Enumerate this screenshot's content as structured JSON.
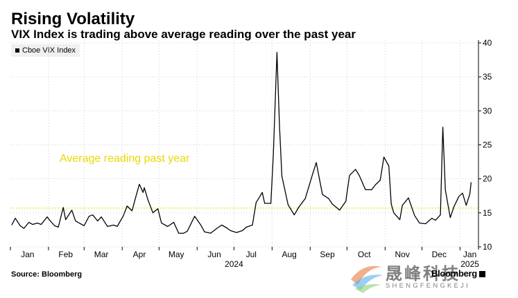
{
  "header": {
    "title": "Rising Volatility",
    "subtitle": "VIX Index is trading above average reading over the past year"
  },
  "legend": {
    "label": "Cboe VIX Index"
  },
  "footer": {
    "source": "Source: Bloomberg",
    "brand": "Bloomberg"
  },
  "watermark": {
    "chinese": "晟峰科技",
    "english": "SHENGFENGKEJI"
  },
  "colors": {
    "line": "#000000",
    "average_line": "#f0e000",
    "average_text": "#e8d800",
    "grid": "#cccccc"
  },
  "chart_data": {
    "type": "line",
    "title": "Rising Volatility",
    "subtitle": "VIX Index is trading above average reading over the past year",
    "ylim": [
      10,
      40
    ],
    "y_ticks": [
      10,
      15,
      20,
      25,
      30,
      35,
      40
    ],
    "x_tick_labels": [
      "Jan",
      "Feb",
      "Mar",
      "Apr",
      "May",
      "Jun",
      "Jul",
      "Aug",
      "Sep",
      "Oct",
      "Nov",
      "Dec",
      "Jan"
    ],
    "year_labels": [
      "2024",
      "2025"
    ],
    "grid": true,
    "legend_position": "top-left",
    "average": {
      "value": 15.7,
      "label": "Average reading past year"
    },
    "series": [
      {
        "name": "Cboe VIX Index",
        "points": [
          [
            "2024-01-02",
            13.2
          ],
          [
            "2024-01-05",
            14.2
          ],
          [
            "2024-01-09",
            13.1
          ],
          [
            "2024-01-12",
            12.7
          ],
          [
            "2024-01-16",
            13.6
          ],
          [
            "2024-01-19",
            13.3
          ],
          [
            "2024-01-23",
            13.5
          ],
          [
            "2024-01-26",
            13.3
          ],
          [
            "2024-01-31",
            14.4
          ],
          [
            "2024-02-02",
            13.9
          ],
          [
            "2024-02-06",
            13.1
          ],
          [
            "2024-02-09",
            12.9
          ],
          [
            "2024-02-13",
            15.8
          ],
          [
            "2024-02-15",
            14.0
          ],
          [
            "2024-02-20",
            15.4
          ],
          [
            "2024-02-23",
            13.8
          ],
          [
            "2024-02-27",
            13.4
          ],
          [
            "2024-03-01",
            13.1
          ],
          [
            "2024-03-05",
            14.5
          ],
          [
            "2024-03-08",
            14.7
          ],
          [
            "2024-03-12",
            13.8
          ],
          [
            "2024-03-15",
            14.4
          ],
          [
            "2024-03-20",
            13.0
          ],
          [
            "2024-03-25",
            13.2
          ],
          [
            "2024-03-28",
            13.0
          ],
          [
            "2024-04-02",
            14.6
          ],
          [
            "2024-04-05",
            16.0
          ],
          [
            "2024-04-09",
            15.3
          ],
          [
            "2024-04-12",
            17.3
          ],
          [
            "2024-04-15",
            19.2
          ],
          [
            "2024-04-18",
            18.0
          ],
          [
            "2024-04-19",
            18.7
          ],
          [
            "2024-04-22",
            16.9
          ],
          [
            "2024-04-26",
            15.0
          ],
          [
            "2024-04-30",
            15.6
          ],
          [
            "2024-05-03",
            13.5
          ],
          [
            "2024-05-08",
            13.0
          ],
          [
            "2024-05-13",
            13.6
          ],
          [
            "2024-05-17",
            11.99
          ],
          [
            "2024-05-21",
            12.0
          ],
          [
            "2024-05-24",
            12.3
          ],
          [
            "2024-05-30",
            14.5
          ],
          [
            "2024-06-04",
            13.2
          ],
          [
            "2024-06-07",
            12.2
          ],
          [
            "2024-06-12",
            12.0
          ],
          [
            "2024-06-17",
            12.7
          ],
          [
            "2024-06-21",
            13.2
          ],
          [
            "2024-06-25",
            12.8
          ],
          [
            "2024-06-28",
            12.4
          ],
          [
            "2024-07-03",
            12.1
          ],
          [
            "2024-07-08",
            12.4
          ],
          [
            "2024-07-11",
            12.9
          ],
          [
            "2024-07-16",
            13.2
          ],
          [
            "2024-07-19",
            16.5
          ],
          [
            "2024-07-24",
            18.0
          ],
          [
            "2024-07-26",
            16.4
          ],
          [
            "2024-07-31",
            16.4
          ],
          [
            "2024-08-02",
            23.4
          ],
          [
            "2024-08-05",
            38.6
          ],
          [
            "2024-08-07",
            27.9
          ],
          [
            "2024-08-09",
            20.4
          ],
          [
            "2024-08-14",
            16.2
          ],
          [
            "2024-08-19",
            14.7
          ],
          [
            "2024-08-23",
            15.9
          ],
          [
            "2024-08-28",
            17.1
          ],
          [
            "2024-09-03",
            20.7
          ],
          [
            "2024-09-06",
            22.4
          ],
          [
            "2024-09-11",
            17.7
          ],
          [
            "2024-09-16",
            17.1
          ],
          [
            "2024-09-19",
            16.3
          ],
          [
            "2024-09-25",
            15.4
          ],
          [
            "2024-09-30",
            16.7
          ],
          [
            "2024-10-03",
            20.5
          ],
          [
            "2024-10-08",
            21.4
          ],
          [
            "2024-10-11",
            20.5
          ],
          [
            "2024-10-16",
            18.4
          ],
          [
            "2024-10-21",
            18.4
          ],
          [
            "2024-10-24",
            19.1
          ],
          [
            "2024-10-28",
            19.8
          ],
          [
            "2024-10-31",
            23.2
          ],
          [
            "2024-11-04",
            21.9
          ],
          [
            "2024-11-06",
            16.3
          ],
          [
            "2024-11-08",
            15.0
          ],
          [
            "2024-11-13",
            14.0
          ],
          [
            "2024-11-15",
            16.1
          ],
          [
            "2024-11-20",
            17.2
          ],
          [
            "2024-11-25",
            14.6
          ],
          [
            "2024-11-29",
            13.5
          ],
          [
            "2024-12-04",
            13.4
          ],
          [
            "2024-12-09",
            14.2
          ],
          [
            "2024-12-12",
            13.9
          ],
          [
            "2024-12-16",
            14.7
          ],
          [
            "2024-12-18",
            27.6
          ],
          [
            "2024-12-20",
            18.4
          ],
          [
            "2024-12-24",
            14.3
          ],
          [
            "2024-12-27",
            15.9
          ],
          [
            "2024-12-31",
            17.4
          ],
          [
            "2025-01-03",
            17.9
          ],
          [
            "2025-01-06",
            16.1
          ],
          [
            "2025-01-09",
            17.8
          ],
          [
            "2025-01-10",
            19.5
          ]
        ]
      }
    ]
  }
}
